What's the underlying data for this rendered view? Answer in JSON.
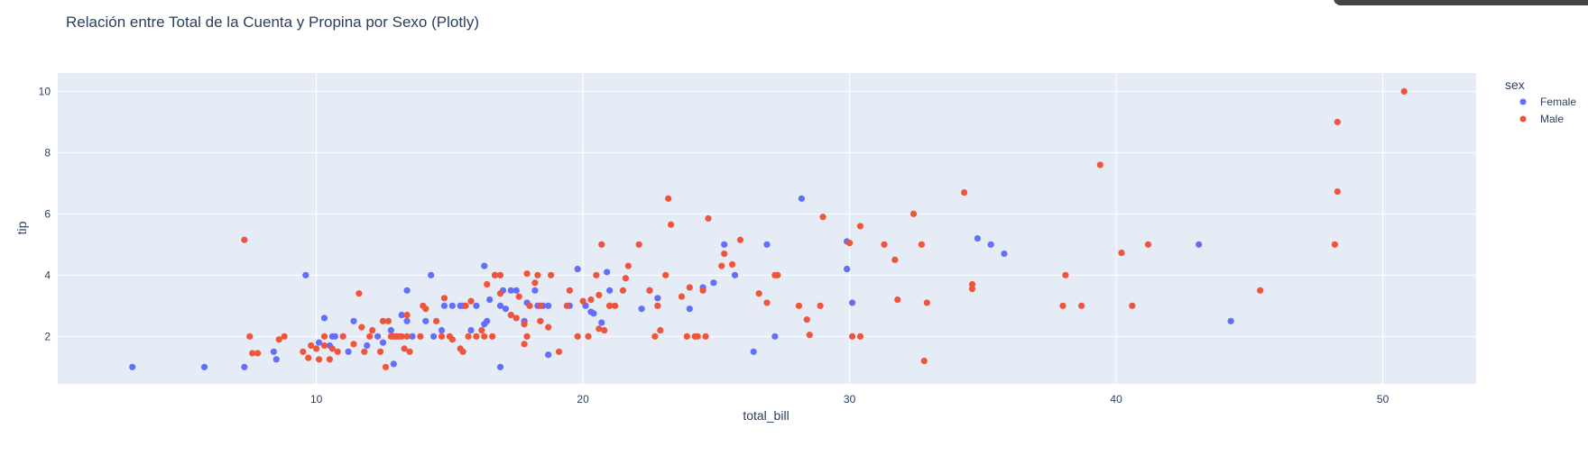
{
  "chart_data": {
    "type": "scatter",
    "title": "Relación entre Total de la Cuenta y Propina por Sexo (Plotly)",
    "xlabel": "total_bill",
    "ylabel": "tip",
    "xlim": [
      0.3,
      53.5
    ],
    "ylim": [
      0.45,
      10.6
    ],
    "xticks": [
      10,
      20,
      30,
      40,
      50
    ],
    "yticks": [
      2,
      4,
      6,
      8,
      10
    ],
    "grid": true,
    "legend": {
      "title": "sex",
      "position": "right"
    },
    "series": [
      {
        "name": "Female",
        "color": "#636efa",
        "points": [
          [
            3.1,
            1.0
          ],
          [
            5.8,
            1.0
          ],
          [
            7.3,
            1.0
          ],
          [
            8.4,
            1.5
          ],
          [
            8.5,
            1.25
          ],
          [
            9.6,
            4.0
          ],
          [
            10.1,
            1.8
          ],
          [
            10.3,
            2.6
          ],
          [
            10.5,
            1.7
          ],
          [
            10.7,
            2.0
          ],
          [
            11.2,
            1.5
          ],
          [
            11.4,
            2.5
          ],
          [
            11.9,
            1.7
          ],
          [
            12.3,
            2.0
          ],
          [
            12.5,
            1.8
          ],
          [
            12.8,
            2.2
          ],
          [
            12.9,
            1.1
          ],
          [
            13.2,
            2.7
          ],
          [
            13.4,
            3.5
          ],
          [
            13.4,
            2.5
          ],
          [
            13.6,
            2.0
          ],
          [
            14.3,
            4.0
          ],
          [
            14.4,
            2.0
          ],
          [
            14.7,
            2.2
          ],
          [
            14.8,
            3.0
          ],
          [
            15.1,
            3.0
          ],
          [
            15.5,
            3.0
          ],
          [
            15.8,
            2.2
          ],
          [
            16.0,
            3.0
          ],
          [
            16.3,
            4.3
          ],
          [
            16.4,
            2.5
          ],
          [
            16.5,
            3.2
          ],
          [
            16.7,
            4.0
          ],
          [
            16.9,
            3.0
          ],
          [
            17.0,
            3.5
          ],
          [
            17.1,
            2.9
          ],
          [
            17.3,
            3.5
          ],
          [
            17.5,
            3.5
          ],
          [
            17.9,
            3.1
          ],
          [
            18.2,
            3.5
          ],
          [
            18.3,
            3.0
          ],
          [
            18.5,
            3.0
          ],
          [
            18.7,
            1.4
          ],
          [
            18.7,
            3.0
          ],
          [
            19.5,
            3.0
          ],
          [
            19.8,
            4.2
          ],
          [
            20.3,
            2.8
          ],
          [
            20.4,
            2.75
          ],
          [
            20.7,
            2.45
          ],
          [
            20.9,
            4.1
          ],
          [
            21.0,
            3.5
          ],
          [
            22.2,
            2.9
          ],
          [
            22.5,
            3.5
          ],
          [
            22.8,
            3.25
          ],
          [
            24.0,
            2.9
          ],
          [
            24.5,
            3.6
          ],
          [
            24.9,
            3.75
          ],
          [
            25.3,
            5.0
          ],
          [
            25.7,
            4.0
          ],
          [
            26.4,
            1.5
          ],
          [
            26.9,
            5.0
          ],
          [
            27.2,
            2.0
          ],
          [
            28.2,
            6.5
          ],
          [
            29.9,
            4.2
          ],
          [
            29.9,
            5.1
          ],
          [
            30.1,
            3.1
          ],
          [
            34.8,
            5.2
          ],
          [
            35.3,
            5.0
          ],
          [
            35.8,
            4.7
          ],
          [
            43.1,
            5.0
          ],
          [
            44.3,
            2.5
          ],
          [
            16.9,
            1.0
          ],
          [
            10.6,
            2.0
          ],
          [
            13.0,
            2.0
          ],
          [
            15.4,
            3.0
          ],
          [
            16.3,
            2.4
          ],
          [
            17.8,
            2.5
          ],
          [
            14.1,
            2.5
          ],
          [
            20.1,
            3.0
          ]
        ]
      },
      {
        "name": "Male",
        "color": "#ef553b",
        "points": [
          [
            7.3,
            5.15
          ],
          [
            7.5,
            2.0
          ],
          [
            7.6,
            1.45
          ],
          [
            7.8,
            1.45
          ],
          [
            8.6,
            1.9
          ],
          [
            8.8,
            2.0
          ],
          [
            9.5,
            1.5
          ],
          [
            9.7,
            1.3
          ],
          [
            9.8,
            1.7
          ],
          [
            10.0,
            1.6
          ],
          [
            10.1,
            1.25
          ],
          [
            10.3,
            2.0
          ],
          [
            10.3,
            1.7
          ],
          [
            10.5,
            1.25
          ],
          [
            10.6,
            1.6
          ],
          [
            10.8,
            1.5
          ],
          [
            11.0,
            2.0
          ],
          [
            11.4,
            1.75
          ],
          [
            11.6,
            3.4
          ],
          [
            11.7,
            2.3
          ],
          [
            11.8,
            1.5
          ],
          [
            12.0,
            2.0
          ],
          [
            12.1,
            2.2
          ],
          [
            12.4,
            1.5
          ],
          [
            12.5,
            2.5
          ],
          [
            12.6,
            1.0
          ],
          [
            12.7,
            2.5
          ],
          [
            12.8,
            2.0
          ],
          [
            12.9,
            2.0
          ],
          [
            13.0,
            2.0
          ],
          [
            13.1,
            2.0
          ],
          [
            13.2,
            2.0
          ],
          [
            13.3,
            1.6
          ],
          [
            13.4,
            2.7
          ],
          [
            13.4,
            2.0
          ],
          [
            13.5,
            1.5
          ],
          [
            13.9,
            2.0
          ],
          [
            14.0,
            3.0
          ],
          [
            14.1,
            2.9
          ],
          [
            14.5,
            2.5
          ],
          [
            14.7,
            2.0
          ],
          [
            14.8,
            3.25
          ],
          [
            15.0,
            2.0
          ],
          [
            15.1,
            1.9
          ],
          [
            15.4,
            1.6
          ],
          [
            15.5,
            1.5
          ],
          [
            15.6,
            3.0
          ],
          [
            15.7,
            2.0
          ],
          [
            15.8,
            3.15
          ],
          [
            16.0,
            2.0
          ],
          [
            16.2,
            2.2
          ],
          [
            16.3,
            2.0
          ],
          [
            16.4,
            3.7
          ],
          [
            16.6,
            2.0
          ],
          [
            16.7,
            4.0
          ],
          [
            16.9,
            4.0
          ],
          [
            16.9,
            3.4
          ],
          [
            17.3,
            2.7
          ],
          [
            17.5,
            2.6
          ],
          [
            17.6,
            3.3
          ],
          [
            17.8,
            2.4
          ],
          [
            17.8,
            1.75
          ],
          [
            17.9,
            2.0
          ],
          [
            17.9,
            4.05
          ],
          [
            18.0,
            3.0
          ],
          [
            18.2,
            3.75
          ],
          [
            18.3,
            4.0
          ],
          [
            18.4,
            3.0
          ],
          [
            18.4,
            2.5
          ],
          [
            18.7,
            2.3
          ],
          [
            18.8,
            4.0
          ],
          [
            19.1,
            1.5
          ],
          [
            19.4,
            3.0
          ],
          [
            19.5,
            3.5
          ],
          [
            19.8,
            2.0
          ],
          [
            20.0,
            3.15
          ],
          [
            20.2,
            2.0
          ],
          [
            20.3,
            3.2
          ],
          [
            20.5,
            4.0
          ],
          [
            20.6,
            3.35
          ],
          [
            20.7,
            5.0
          ],
          [
            20.8,
            2.2
          ],
          [
            21.0,
            3.0
          ],
          [
            21.2,
            3.0
          ],
          [
            21.5,
            3.5
          ],
          [
            21.6,
            3.9
          ],
          [
            21.7,
            4.3
          ],
          [
            22.1,
            5.0
          ],
          [
            22.5,
            3.5
          ],
          [
            22.7,
            2.0
          ],
          [
            22.8,
            3.0
          ],
          [
            22.9,
            2.2
          ],
          [
            23.1,
            4.0
          ],
          [
            23.2,
            6.5
          ],
          [
            23.3,
            5.65
          ],
          [
            23.7,
            3.3
          ],
          [
            24.0,
            3.6
          ],
          [
            24.3,
            2.0
          ],
          [
            24.5,
            3.5
          ],
          [
            24.6,
            2.0
          ],
          [
            24.7,
            5.85
          ],
          [
            25.2,
            4.3
          ],
          [
            25.3,
            4.7
          ],
          [
            25.6,
            4.35
          ],
          [
            25.9,
            5.15
          ],
          [
            26.6,
            3.4
          ],
          [
            26.9,
            3.1
          ],
          [
            27.2,
            4.0
          ],
          [
            27.3,
            4.0
          ],
          [
            28.1,
            3.0
          ],
          [
            28.4,
            2.55
          ],
          [
            28.5,
            2.05
          ],
          [
            28.9,
            3.0
          ],
          [
            29.0,
            5.9
          ],
          [
            30.0,
            5.05
          ],
          [
            30.1,
            2.0
          ],
          [
            30.4,
            5.6
          ],
          [
            30.4,
            2.0
          ],
          [
            31.3,
            5.0
          ],
          [
            31.7,
            4.5
          ],
          [
            31.8,
            3.2
          ],
          [
            32.4,
            6.0
          ],
          [
            32.7,
            5.0
          ],
          [
            32.8,
            1.2
          ],
          [
            32.9,
            3.1
          ],
          [
            34.3,
            6.7
          ],
          [
            34.6,
            3.55
          ],
          [
            34.6,
            3.7
          ],
          [
            38.0,
            3.0
          ],
          [
            38.1,
            4.0
          ],
          [
            38.7,
            3.0
          ],
          [
            39.4,
            7.6
          ],
          [
            40.2,
            4.73
          ],
          [
            40.6,
            3.0
          ],
          [
            41.2,
            5.0
          ],
          [
            45.4,
            3.5
          ],
          [
            48.2,
            5.0
          ],
          [
            48.3,
            6.73
          ],
          [
            48.3,
            9.0
          ],
          [
            50.8,
            10.0
          ],
          [
            23.9,
            2.0
          ],
          [
            24.2,
            2.0
          ],
          [
            20.6,
            2.25
          ],
          [
            21.0,
            3.0
          ]
        ]
      }
    ]
  }
}
